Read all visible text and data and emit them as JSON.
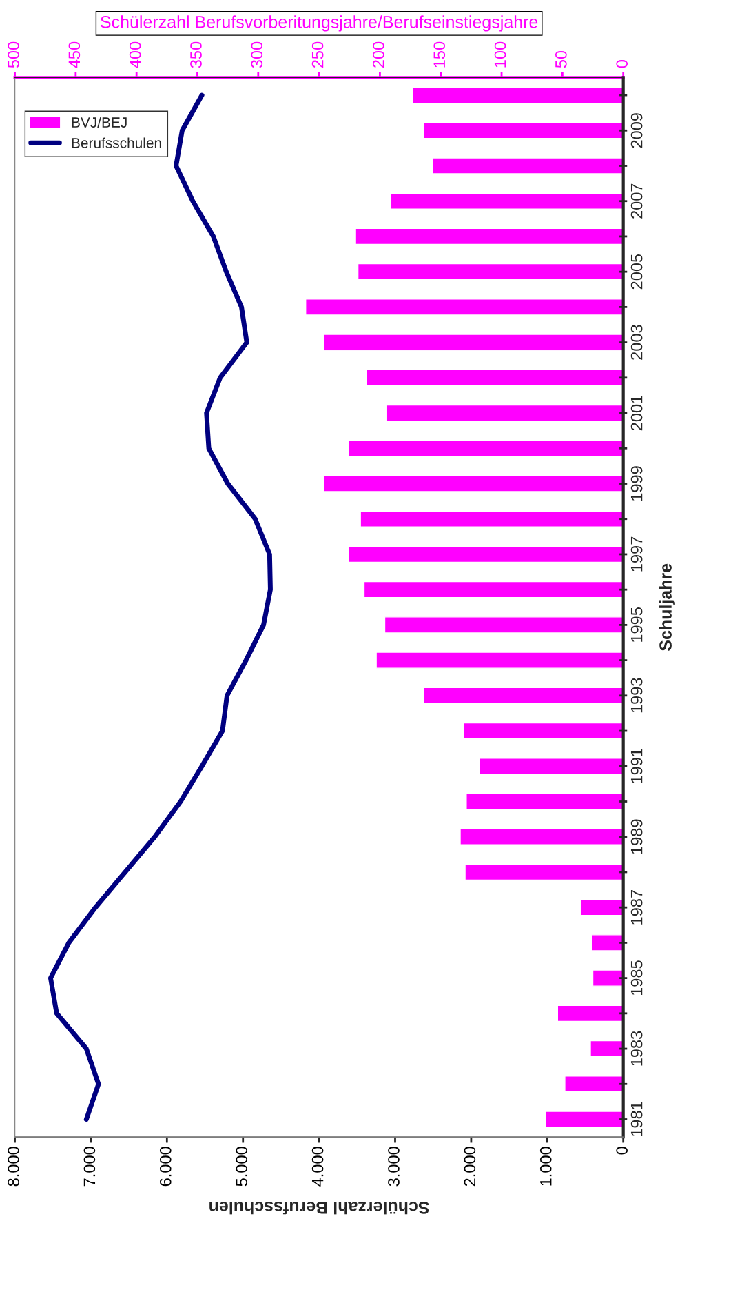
{
  "chart_data": {
    "type": "bar",
    "orientation": "horizontal",
    "x2label": "Schülerzahl Berufsvorberitungsjahre/Berufseinstiegsjahre",
    "xlabel": "Schülerzahl Berufsschulen",
    "ylabel": "Schuljahre",
    "categories": [
      null,
      "2009",
      null,
      "2007",
      null,
      "2005",
      null,
      "2003",
      null,
      "2001",
      null,
      "1999",
      null,
      "1997",
      null,
      "1995",
      null,
      "1993",
      null,
      "1991",
      null,
      "1989",
      null,
      "1987",
      null,
      "1985",
      null,
      "1983",
      null,
      "1981"
    ],
    "series": [
      {
        "name": "BVJ/BEJ",
        "axis": "x2",
        "color": "#ff00ff",
        "values": [
          173,
          164,
          157,
          191,
          220,
          218,
          261,
          246,
          211,
          195,
          226,
          246,
          216,
          226,
          213,
          196,
          203,
          164,
          131,
          118,
          129,
          134,
          130,
          35,
          26,
          25,
          54,
          27,
          48,
          64
        ]
      },
      {
        "name": "Berufsschulen",
        "type": "line",
        "color": "#000080",
        "values": [
          5540,
          5800,
          5880,
          5660,
          5390,
          5220,
          5020,
          4950,
          5300,
          5480,
          5450,
          5200,
          4840,
          4650,
          4640,
          4730,
          4960,
          5210,
          5270,
          5540,
          5820,
          6160,
          6550,
          6940,
          7290,
          7530,
          7450,
          7060,
          6900,
          7060
        ]
      }
    ],
    "xlim": [
      8000,
      0
    ],
    "xticks": [
      {
        "value": 8000,
        "label": "8.000"
      },
      {
        "value": 7000,
        "label": "7.000"
      },
      {
        "value": 6000,
        "label": "6.000"
      },
      {
        "value": 5000,
        "label": "5.000"
      },
      {
        "value": 4000,
        "label": "4.000"
      },
      {
        "value": 3000,
        "label": "3.000"
      },
      {
        "value": 2000,
        "label": "2.000"
      },
      {
        "value": 1000,
        "label": "1.000"
      },
      0
    ],
    "x2lim": [
      500,
      0
    ],
    "x2ticks": [
      500,
      450,
      400,
      350,
      300,
      250,
      200,
      150,
      100,
      50,
      0
    ],
    "legend": "top left",
    "grid": false
  }
}
